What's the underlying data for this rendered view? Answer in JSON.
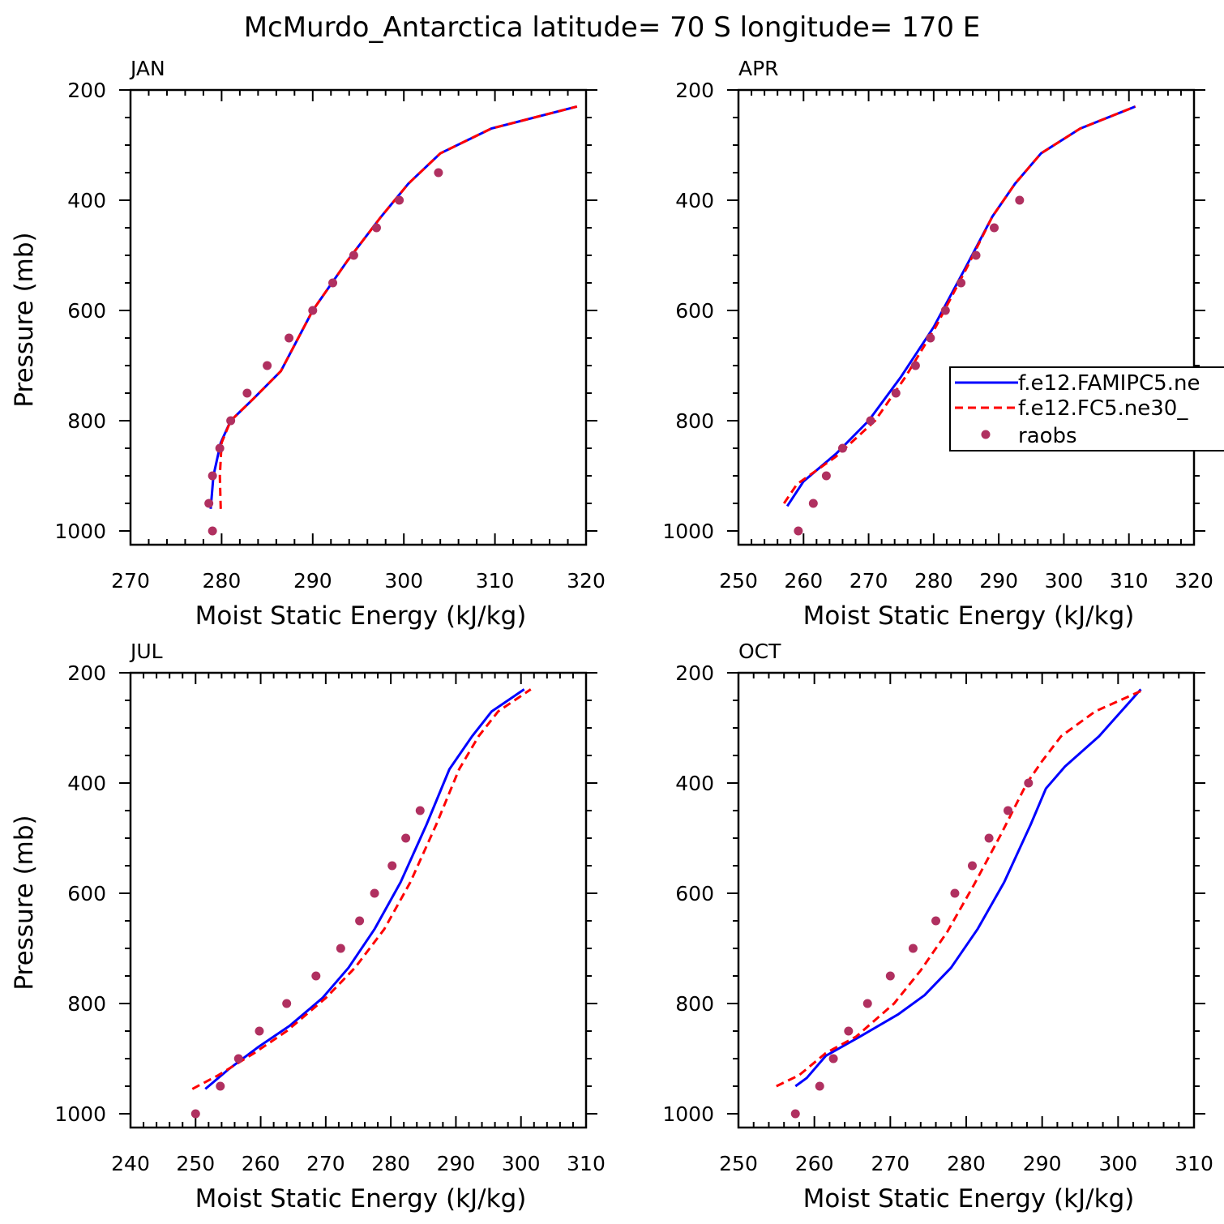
{
  "title": "McMurdo_Antarctica  latitude= 70 S longitude= 170 E",
  "colors": {
    "model1": "#0000ff",
    "model2": "#ff0000",
    "obs": "#b03060",
    "frame": "#000000"
  },
  "legend": {
    "entries": [
      {
        "label": "f.e12.FAMIPC5.ne",
        "style": "solid",
        "color": "#0000ff"
      },
      {
        "label": "f.e12.FC5.ne30_",
        "style": "dashed",
        "color": "#ff0000"
      },
      {
        "label": "raobs",
        "style": "dot",
        "color": "#b03060"
      }
    ]
  },
  "chart_data": [
    {
      "type": "line",
      "panel": "JAN",
      "xlabel": "Moist Static Energy (kJ/kg)",
      "ylabel": "Pressure (mb)",
      "xlim": [
        270,
        320
      ],
      "ylim": [
        200,
        1025
      ],
      "y_inverted": true,
      "xticks": [
        "270",
        "280",
        "290",
        "300",
        "310",
        "320"
      ],
      "yticks": [
        "200",
        "400",
        "600",
        "800",
        "1000"
      ],
      "series": [
        {
          "name": "f.e12.FAMIPC5.ne",
          "style": "solid",
          "x": [
            278.8,
            279.1,
            279.9,
            281.0,
            283.5,
            286.5,
            290.0,
            293.8,
            297.5,
            300.5,
            304.0,
            309.6,
            319.0
          ],
          "y": [
            960,
            900,
            840,
            800,
            760,
            710,
            600,
            510,
            430,
            370,
            315,
            270,
            230
          ]
        },
        {
          "name": "f.e12.FC5.ne30_",
          "style": "dashed",
          "x": [
            279.9,
            279.8,
            280.0,
            281.0,
            283.5,
            286.5,
            290.0,
            293.8,
            297.5,
            300.5,
            304.0,
            309.6,
            319.0
          ],
          "y": [
            960,
            900,
            840,
            800,
            760,
            710,
            600,
            510,
            430,
            370,
            315,
            270,
            230
          ]
        },
        {
          "name": "raobs",
          "style": "dot",
          "x": [
            279.0,
            278.6,
            279.0,
            279.8,
            281.0,
            282.8,
            285.0,
            287.4,
            290.0,
            292.2,
            294.5,
            297.0,
            299.5,
            303.8
          ],
          "y": [
            1000,
            950,
            900,
            850,
            800,
            750,
            700,
            650,
            600,
            550,
            500,
            450,
            400,
            350
          ]
        }
      ]
    },
    {
      "type": "line",
      "panel": "APR",
      "xlabel": "Moist Static Energy (kJ/kg)",
      "ylabel": "",
      "xlim": [
        250,
        320
      ],
      "ylim": [
        200,
        1025
      ],
      "y_inverted": true,
      "xticks": [
        "250",
        "260",
        "270",
        "280",
        "290",
        "300",
        "310",
        "320"
      ],
      "yticks": [
        "200",
        "400",
        "600",
        "800",
        "1000"
      ],
      "series": [
        {
          "name": "f.e12.FAMIPC5.ne",
          "style": "solid",
          "x": [
            257.5,
            260.0,
            265.0,
            270.0,
            275.0,
            280.0,
            285.0,
            289.0,
            292.5,
            296.5,
            302.5,
            311.0
          ],
          "y": [
            955,
            910,
            860,
            800,
            720,
            630,
            520,
            430,
            370,
            315,
            270,
            230
          ]
        },
        {
          "name": "f.e12.FC5.ne30_",
          "style": "dashed",
          "x": [
            257.0,
            259.0,
            265.0,
            271.0,
            275.7,
            280.3,
            285.2,
            289.0,
            292.5,
            296.5,
            302.5,
            311.0
          ],
          "y": [
            950,
            915,
            865,
            800,
            720,
            630,
            520,
            430,
            370,
            315,
            270,
            230
          ]
        },
        {
          "name": "raobs",
          "style": "dot",
          "x": [
            259.2,
            261.5,
            263.5,
            266.0,
            270.3,
            274.2,
            277.2,
            279.5,
            281.8,
            284.2,
            286.5,
            289.3,
            293.2
          ],
          "y": [
            1000,
            950,
            900,
            850,
            800,
            750,
            700,
            650,
            600,
            550,
            500,
            450,
            400
          ]
        }
      ]
    },
    {
      "type": "line",
      "panel": "JUL",
      "xlabel": "Moist Static Energy (kJ/kg)",
      "ylabel": "Pressure (mb)",
      "xlim": [
        240,
        310
      ],
      "ylim": [
        200,
        1025
      ],
      "y_inverted": true,
      "xticks": [
        "240",
        "250",
        "260",
        "270",
        "280",
        "290",
        "300",
        "310"
      ],
      "yticks": [
        "200",
        "400",
        "600",
        "800",
        "1000"
      ],
      "series": [
        {
          "name": "f.e12.FAMIPC5.ne",
          "style": "solid",
          "x": [
            251.5,
            255.0,
            259.5,
            264.5,
            269.5,
            273.5,
            277.5,
            281.5,
            285.5,
            289.0,
            292.5,
            295.5,
            300.5
          ],
          "y": [
            955,
            920,
            880,
            840,
            790,
            735,
            665,
            580,
            475,
            375,
            315,
            270,
            230
          ]
        },
        {
          "name": "f.e12.FC5.ne30_",
          "style": "dashed",
          "x": [
            249.5,
            253.5,
            259.0,
            264.0,
            270.0,
            274.5,
            279.0,
            283.0,
            287.0,
            290.5,
            293.5,
            296.5,
            301.5
          ],
          "y": [
            955,
            930,
            890,
            850,
            790,
            735,
            665,
            580,
            475,
            375,
            315,
            270,
            230
          ]
        },
        {
          "name": "raobs",
          "style": "dot",
          "x": [
            250.0,
            253.8,
            256.6,
            259.8,
            264.0,
            268.5,
            272.3,
            275.2,
            277.5,
            280.2,
            282.3,
            284.5
          ],
          "y": [
            1000,
            950,
            900,
            850,
            800,
            750,
            700,
            650,
            600,
            550,
            500,
            450
          ]
        }
      ]
    },
    {
      "type": "line",
      "panel": "OCT",
      "xlabel": "Moist Static Energy (kJ/kg)",
      "ylabel": "",
      "xlim": [
        250,
        310
      ],
      "ylim": [
        200,
        1025
      ],
      "y_inverted": true,
      "xticks": [
        "250",
        "260",
        "270",
        "280",
        "290",
        "300",
        "310"
      ],
      "yticks": [
        "200",
        "400",
        "600",
        "800",
        "1000"
      ],
      "series": [
        {
          "name": "f.e12.FAMIPC5.ne",
          "style": "solid",
          "x": [
            257.5,
            259.0,
            261.5,
            266.0,
            271.0,
            274.5,
            278.0,
            281.5,
            285.0,
            288.5,
            290.5,
            293.0,
            297.5,
            303.0
          ],
          "y": [
            950,
            935,
            895,
            860,
            820,
            785,
            735,
            665,
            580,
            475,
            410,
            370,
            315,
            230
          ]
        },
        {
          "name": "f.e12.FC5.ne30_",
          "style": "dashed",
          "x": [
            255.0,
            258.0,
            261.5,
            265.5,
            270.5,
            274.0,
            277.5,
            281.0,
            284.5,
            288.0,
            290.0,
            292.5,
            297.0,
            303.5
          ],
          "y": [
            950,
            930,
            890,
            860,
            800,
            740,
            670,
            585,
            495,
            400,
            360,
            315,
            270,
            230
          ]
        },
        {
          "name": "raobs",
          "style": "dot",
          "x": [
            257.5,
            260.7,
            262.5,
            264.5,
            267.0,
            270.0,
            273.0,
            276.0,
            278.5,
            280.8,
            283.0,
            285.5,
            288.2
          ],
          "y": [
            1000,
            950,
            900,
            850,
            800,
            750,
            700,
            650,
            600,
            550,
            500,
            450,
            400
          ]
        }
      ]
    }
  ]
}
